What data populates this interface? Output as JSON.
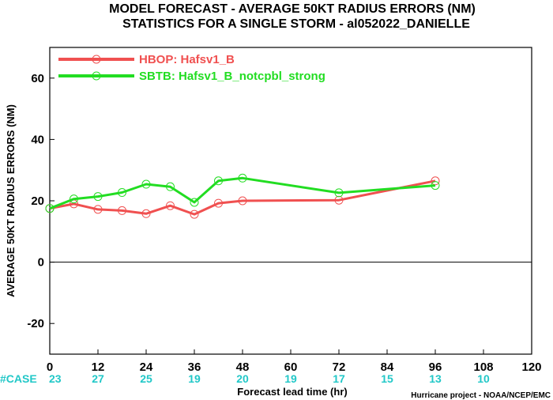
{
  "chart_data": {
    "type": "line",
    "title": "MODEL FORECAST - AVERAGE 50KT RADIUS ERRORS (NM)",
    "subtitle": "STATISTICS FOR A SINGLE STORM - al052022_DANIELLE",
    "xlabel": "Forecast lead time (hr)",
    "ylabel": "AVERAGE 50KT RADIUS ERRORS (NM)",
    "xlim": [
      0,
      120
    ],
    "ylim": [
      -30,
      70
    ],
    "xticks": [
      0,
      12,
      24,
      36,
      48,
      60,
      72,
      84,
      96,
      108,
      120
    ],
    "yticks": [
      -20,
      0,
      20,
      40,
      60
    ],
    "zero_line": true,
    "grid": false,
    "legend_position": "top-left",
    "series": [
      {
        "name": "HBOP: Hafsv1_B",
        "color": "#f05050",
        "x": [
          0,
          6,
          12,
          18,
          24,
          30,
          36,
          42,
          48,
          72,
          96
        ],
        "values": [
          17.5,
          19.0,
          17.2,
          16.8,
          15.8,
          18.4,
          15.6,
          19.2,
          20.0,
          20.2,
          26.5
        ]
      },
      {
        "name": "SBTB: Hafsv1_B_notcpbl_strong",
        "color": "#22dd22",
        "x": [
          0,
          6,
          12,
          18,
          24,
          30,
          36,
          42,
          48,
          72,
          96
        ],
        "values": [
          17.5,
          20.6,
          21.4,
          22.7,
          25.4,
          24.6,
          19.5,
          26.5,
          27.4,
          22.6,
          25.0
        ]
      }
    ],
    "cases": {
      "label": "#CASE",
      "x": [
        0,
        12,
        24,
        36,
        48,
        60,
        72,
        84,
        96,
        108
      ],
      "counts": [
        "23",
        "27",
        "25",
        "19",
        "20",
        "19",
        "17",
        "15",
        "13",
        "10"
      ],
      "color": "#22c8c8"
    },
    "credit": "Hurricane project - NOAA/NCEP/EMC"
  }
}
